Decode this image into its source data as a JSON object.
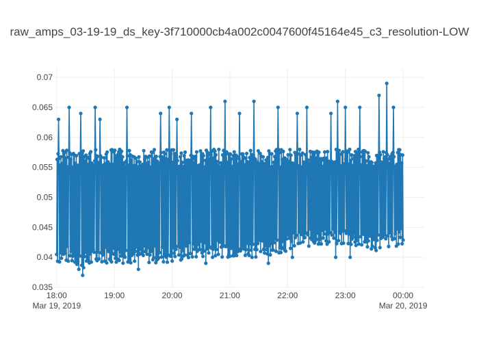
{
  "chart_data": {
    "type": "line",
    "title": "raw_amps_03-19-19_ds_key-3f710000cb4a002c0047600f45164e45_c3_resolution-LOW",
    "xlabel": "",
    "ylabel": "",
    "grid": true,
    "legend": "none",
    "mode": "lines+markers",
    "xlim": [
      "2019-03-19 17:58",
      "2019-03-20 00:22"
    ],
    "ylim": [
      0.035,
      0.0715
    ],
    "x_ticks": [
      "18:00",
      "19:00",
      "20:00",
      "21:00",
      "22:00",
      "23:00",
      "00:00"
    ],
    "x_date_labels": [
      "Mar 19, 2019",
      "Mar 20, 2019"
    ],
    "y_ticks": [
      "0.035",
      "0.04",
      "0.045",
      "0.05",
      "0.055",
      "0.06",
      "0.065",
      "0.07"
    ],
    "series": [
      {
        "color": "#1f77b4",
        "x_start": "2019-03-19 18:00",
        "x_end": "2019-03-20 00:00",
        "samples_per_minute": 2,
        "envelope_minutes": [
          0,
          15,
          30,
          45,
          60,
          90,
          120,
          150,
          180,
          210,
          240,
          270,
          300,
          330,
          360
        ],
        "envelope_low": [
          0.039,
          0.039,
          0.038,
          0.039,
          0.039,
          0.039,
          0.039,
          0.04,
          0.04,
          0.04,
          0.041,
          0.042,
          0.042,
          0.041,
          0.042
        ],
        "envelope_high": [
          0.058,
          0.058,
          0.058,
          0.058,
          0.058,
          0.058,
          0.058,
          0.058,
          0.058,
          0.058,
          0.058,
          0.058,
          0.058,
          0.058,
          0.058
        ],
        "peaks": [
          {
            "x": "2019-03-19 18:02",
            "y": 0.063
          },
          {
            "x": "2019-03-19 18:13",
            "y": 0.065
          },
          {
            "x": "2019-03-19 18:25",
            "y": 0.064
          },
          {
            "x": "2019-03-19 18:40",
            "y": 0.065
          },
          {
            "x": "2019-03-19 18:45",
            "y": 0.063
          },
          {
            "x": "2019-03-19 19:13",
            "y": 0.065
          },
          {
            "x": "2019-03-19 19:25",
            "y": 0.063
          },
          {
            "x": "2019-03-19 19:48",
            "y": 0.064
          },
          {
            "x": "2019-03-19 19:57",
            "y": 0.065
          },
          {
            "x": "2019-03-19 20:05",
            "y": 0.063
          },
          {
            "x": "2019-03-19 20:20",
            "y": 0.064
          },
          {
            "x": "2019-03-19 20:40",
            "y": 0.065
          },
          {
            "x": "2019-03-19 20:55",
            "y": 0.066
          },
          {
            "x": "2019-03-19 21:10",
            "y": 0.064
          },
          {
            "x": "2019-03-19 21:25",
            "y": 0.066
          },
          {
            "x": "2019-03-19 21:50",
            "y": 0.065
          },
          {
            "x": "2019-03-19 22:10",
            "y": 0.064
          },
          {
            "x": "2019-03-19 22:20",
            "y": 0.065
          },
          {
            "x": "2019-03-19 22:45",
            "y": 0.064
          },
          {
            "x": "2019-03-19 22:52",
            "y": 0.066
          },
          {
            "x": "2019-03-19 23:00",
            "y": 0.065
          },
          {
            "x": "2019-03-19 23:15",
            "y": 0.065
          },
          {
            "x": "2019-03-19 23:35",
            "y": 0.067
          },
          {
            "x": "2019-03-19 23:43",
            "y": 0.069
          },
          {
            "x": "2019-03-19 23:50",
            "y": 0.065
          }
        ],
        "dips": [
          {
            "x": "2019-03-19 18:23",
            "y": 0.038
          },
          {
            "x": "2019-03-19 18:27",
            "y": 0.037
          },
          {
            "x": "2019-03-19 19:25",
            "y": 0.038
          },
          {
            "x": "2019-03-19 20:35",
            "y": 0.039
          },
          {
            "x": "2019-03-19 21:40",
            "y": 0.039
          },
          {
            "x": "2019-03-19 22:05",
            "y": 0.04
          },
          {
            "x": "2019-03-19 22:50",
            "y": 0.04
          },
          {
            "x": "2019-03-19 23:05",
            "y": 0.04
          }
        ]
      }
    ]
  }
}
